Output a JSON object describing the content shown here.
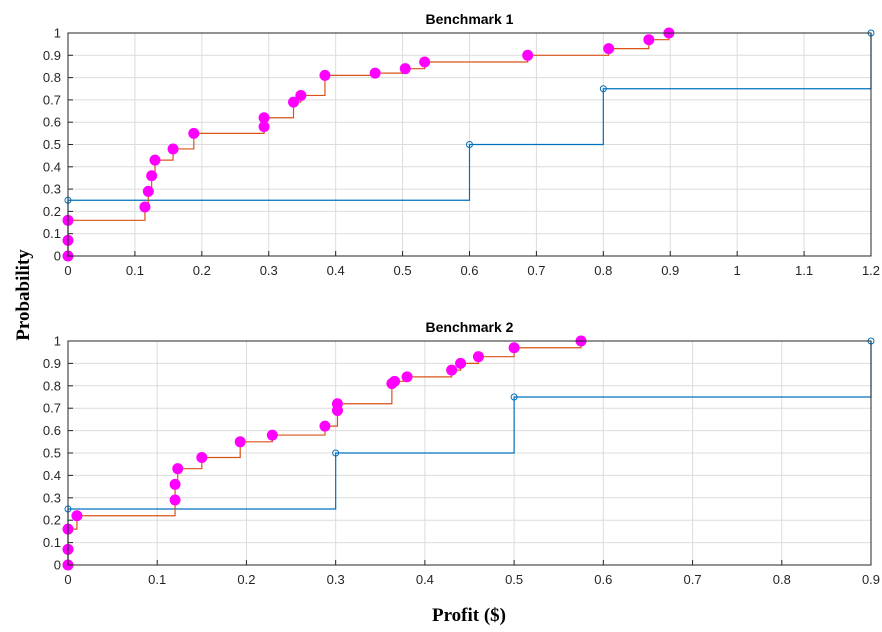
{
  "figure": {
    "ylabel": "Probability",
    "xlabel": "Profit ($)"
  },
  "colors": {
    "blue": "#0072BD",
    "orange": "#D95319",
    "magenta": "#FF00FF",
    "grid": "#DCDCDC",
    "axis": "#262626"
  },
  "chart_data": [
    {
      "type": "line",
      "title": "Benchmark 1",
      "xlim": [
        0,
        1.2
      ],
      "ylim": [
        0,
        1
      ],
      "xticks": [
        "0",
        "0.1",
        "0.2",
        "0.3",
        "0.4",
        "0.5",
        "0.6",
        "0.7",
        "0.8",
        "0.9",
        "1",
        "1.1",
        "1.2"
      ],
      "yticks": [
        "0",
        "0.1",
        "0.2",
        "0.3",
        "0.4",
        "0.5",
        "0.6",
        "0.7",
        "0.8",
        "0.9",
        "1"
      ],
      "grid": true,
      "series": [
        {
          "style": "stairs-open-markers",
          "x": [
            0,
            0,
            0.6,
            0.8,
            1.2
          ],
          "y": [
            0,
            0.25,
            0.5,
            0.75,
            1
          ]
        },
        {
          "style": "stairs-filled-markers",
          "x": [
            0,
            0,
            0,
            0.115,
            0.12,
            0.125,
            0.13,
            0.157,
            0.188,
            0.293,
            0.293,
            0.337,
            0.348,
            0.384,
            0.459,
            0.504,
            0.533,
            0.687,
            0.808,
            0.868,
            0.898
          ],
          "y": [
            0,
            0.07,
            0.16,
            0.22,
            0.29,
            0.36,
            0.43,
            0.48,
            0.55,
            0.58,
            0.62,
            0.69,
            0.72,
            0.81,
            0.82,
            0.84,
            0.87,
            0.9,
            0.93,
            0.97,
            1.0
          ]
        }
      ]
    },
    {
      "type": "line",
      "title": "Benchmark 2",
      "xlim": [
        0,
        0.9
      ],
      "ylim": [
        0,
        1
      ],
      "xticks": [
        "0",
        "0.1",
        "0.2",
        "0.3",
        "0.4",
        "0.5",
        "0.6",
        "0.7",
        "0.8",
        "0.9"
      ],
      "yticks": [
        "0",
        "0.1",
        "0.2",
        "0.3",
        "0.4",
        "0.5",
        "0.6",
        "0.7",
        "0.8",
        "0.9",
        "1"
      ],
      "grid": true,
      "series": [
        {
          "style": "stairs-open-markers",
          "x": [
            0,
            0,
            0.3,
            0.5,
            0.9
          ],
          "y": [
            0,
            0.25,
            0.5,
            0.75,
            1
          ]
        },
        {
          "style": "stairs-filled-markers",
          "x": [
            0,
            0,
            0,
            0.01,
            0.12,
            0.12,
            0.123,
            0.15,
            0.193,
            0.229,
            0.288,
            0.302,
            0.302,
            0.363,
            0.366,
            0.38,
            0.43,
            0.44,
            0.46,
            0.5,
            0.575
          ],
          "y": [
            0,
            0.07,
            0.16,
            0.22,
            0.29,
            0.36,
            0.43,
            0.48,
            0.55,
            0.58,
            0.62,
            0.69,
            0.72,
            0.81,
            0.82,
            0.84,
            0.87,
            0.9,
            0.93,
            0.97,
            1.0
          ]
        }
      ]
    }
  ]
}
